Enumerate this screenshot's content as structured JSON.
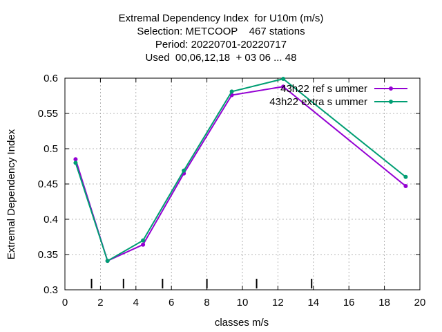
{
  "chart_data": {
    "type": "line",
    "title_lines": [
      "Extremal Dependency Index  for U10m (m/s)",
      "Selection: METCOOP    467 stations",
      "Period: 20220701-20220717",
      "Used  00,06,12,18  + 03 06 ... 48"
    ],
    "xlabel": "classes m/s",
    "ylabel": "Extremal Dependency Index",
    "xlim": [
      0,
      20
    ],
    "ylim": [
      0.3,
      0.6
    ],
    "xticks": [
      0,
      2,
      4,
      6,
      8,
      10,
      12,
      14,
      16,
      18,
      20
    ],
    "xtick_labels": [
      "0",
      "2",
      "4",
      "6",
      "8",
      "10",
      "12",
      "14",
      "16",
      "18",
      "20"
    ],
    "yticks": [
      0.3,
      0.35,
      0.4,
      0.45,
      0.5,
      0.55,
      0.6
    ],
    "ytick_labels": [
      "0.3",
      "0.35",
      "0.4",
      "0.45",
      "0.5",
      "0.55",
      "0.6"
    ],
    "grid": true,
    "legend_position": "top-right",
    "class_boundaries": [
      1.5,
      3.3,
      5.5,
      8.0,
      10.8,
      13.9
    ],
    "series": [
      {
        "name": "43h22_ref_summer",
        "legend_label": "43h22 ref s ummer",
        "color": "#9400d3",
        "x": [
          0.6,
          2.4,
          4.4,
          6.7,
          9.4,
          12.3,
          19.2
        ],
        "y": [
          0.485,
          0.341,
          0.364,
          0.465,
          0.576,
          0.588,
          0.447
        ]
      },
      {
        "name": "43h22_extra_summer",
        "legend_label": "43h22 extra s ummer",
        "color": "#009e73",
        "x": [
          0.6,
          2.4,
          4.4,
          6.7,
          9.4,
          12.3,
          19.2
        ],
        "y": [
          0.48,
          0.341,
          0.37,
          0.469,
          0.581,
          0.599,
          0.46
        ]
      }
    ]
  }
}
